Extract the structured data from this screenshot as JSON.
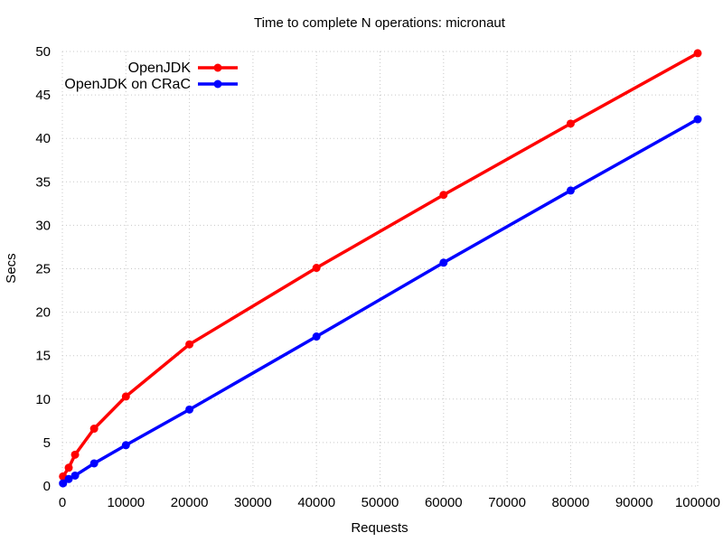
{
  "chart_data": {
    "type": "line",
    "title": "Time to complete N operations: micronaut",
    "xlabel": "Requests",
    "ylabel": "Secs",
    "xlim": [
      0,
      100000
    ],
    "ylim": [
      0,
      50
    ],
    "xticks": [
      0,
      10000,
      20000,
      30000,
      40000,
      50000,
      60000,
      70000,
      80000,
      90000,
      100000
    ],
    "yticks": [
      0,
      5,
      10,
      15,
      20,
      25,
      30,
      35,
      40,
      45,
      50
    ],
    "grid": "dotted",
    "grid_color": "#c8c8c8",
    "legend_position": "top-left-inside",
    "x": [
      100,
      1000,
      2000,
      5000,
      10000,
      20000,
      40000,
      60000,
      80000,
      100000
    ],
    "series": [
      {
        "name": "OpenJDK",
        "color": "#ff0000",
        "marker": "filled-circle",
        "values": [
          1.1,
          2.1,
          3.6,
          6.6,
          10.3,
          16.3,
          25.1,
          33.5,
          41.7,
          49.8
        ]
      },
      {
        "name": "OpenJDK on CRaC",
        "color": "#0000ff",
        "marker": "filled-circle",
        "values": [
          0.3,
          0.8,
          1.2,
          2.6,
          4.7,
          8.8,
          17.2,
          25.7,
          34.0,
          42.2
        ]
      }
    ]
  }
}
